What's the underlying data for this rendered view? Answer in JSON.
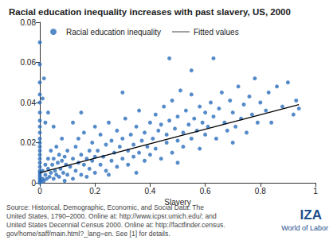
{
  "chart_data": {
    "type": "scatter",
    "title": "Racial education inequality increases with past slavery, US, 2000",
    "xlabel": "Slavery",
    "xlim": [
      0,
      1
    ],
    "xticks": [
      0,
      0.2,
      0.4,
      0.6,
      0.8,
      1
    ],
    "ylim": [
      0,
      0.08
    ],
    "yticks": [
      0,
      0.02,
      0.04,
      0.06,
      0.08
    ],
    "grid": false,
    "legend": "upper left",
    "source": [
      "Source: Historical, Demographic, Economic, and Social Data: The",
      "United States, 1790–2000. Online at: http://www.icpsr.umich.edu/; and",
      "United States Decennial Census 2000. Online at: http://factfinder.census.",
      "gov/home/saff/main.html?_lang=en. See [1] for details."
    ],
    "logo": [
      "IZA",
      "World of Labor"
    ],
    "series": [
      {
        "name": "Racial education inequality",
        "type": "scatter",
        "marker": "circle",
        "color": "#2a6ebb",
        "x": [
          0,
          0,
          0,
          0,
          0,
          0,
          0,
          0,
          0,
          0,
          0,
          0,
          0,
          0,
          0,
          0,
          0,
          0,
          0,
          0,
          0,
          0,
          0,
          0,
          0.005,
          0.01,
          0.01,
          0.015,
          0.02,
          0.02,
          0.025,
          0.03,
          0.03,
          0.035,
          0.04,
          0.04,
          0.045,
          0.05,
          0.05,
          0.055,
          0.06,
          0.06,
          0.065,
          0.07,
          0.07,
          0.075,
          0.08,
          0.08,
          0.085,
          0.09,
          0.09,
          0.095,
          0.1,
          0.1,
          0.02,
          0.01,
          0.05,
          0.03,
          0.015,
          0.11,
          0.12,
          0.12,
          0.13,
          0.13,
          0.14,
          0.14,
          0.15,
          0.15,
          0.16,
          0.16,
          0.17,
          0.17,
          0.18,
          0.18,
          0.19,
          0.19,
          0.2,
          0.2,
          0.2,
          0.12,
          0.15,
          0.21,
          0.22,
          0.22,
          0.23,
          0.24,
          0.24,
          0.25,
          0.26,
          0.26,
          0.27,
          0.28,
          0.28,
          0.29,
          0.3,
          0.3,
          0.31,
          0.32,
          0.32,
          0.33,
          0.34,
          0.34,
          0.35,
          0.36,
          0.36,
          0.37,
          0.38,
          0.38,
          0.39,
          0.4,
          0.4,
          0.3,
          0.35,
          0.25,
          0.41,
          0.42,
          0.42,
          0.43,
          0.44,
          0.44,
          0.45,
          0.46,
          0.46,
          0.47,
          0.48,
          0.48,
          0.49,
          0.5,
          0.5,
          0.51,
          0.52,
          0.52,
          0.53,
          0.54,
          0.55,
          0.55,
          0.56,
          0.57,
          0.58,
          0.58,
          0.59,
          0.6,
          0.6,
          0.47,
          0.55,
          0.5,
          0.61,
          0.62,
          0.63,
          0.64,
          0.65,
          0.66,
          0.67,
          0.68,
          0.69,
          0.7,
          0.71,
          0.72,
          0.73,
          0.74,
          0.75,
          0.76,
          0.77,
          0.78,
          0.79,
          0.8,
          0.63,
          0.7,
          0.82,
          0.83,
          0.84,
          0.86,
          0.88,
          0.9,
          0.92,
          0.93,
          0.94
        ],
        "values": [
          0,
          0.001,
          0.002,
          0.003,
          0.004,
          0.005,
          0.006,
          0.008,
          0.01,
          0.012,
          0.014,
          0.016,
          0.018,
          0.02,
          0.022,
          0.025,
          0.028,
          0.031,
          0.035,
          0.04,
          0.044,
          0.05,
          0.059,
          0.07,
          0.0005,
          0.002,
          0.006,
          0.001,
          0.004,
          0.009,
          0.002,
          0.007,
          0.012,
          0.003,
          0.005,
          0.016,
          0.009,
          0.002,
          0.012,
          0.006,
          0.004,
          0.018,
          0.01,
          0.003,
          0.014,
          0.007,
          0.011,
          0.022,
          0.005,
          0.013,
          0.001,
          0.009,
          0.016,
          0.004,
          0.03,
          0.042,
          0.028,
          0.035,
          0.052,
          0.008,
          0.012,
          0.002,
          0.018,
          0.006,
          0.01,
          0.022,
          0.004,
          0.014,
          0.009,
          0.025,
          0.012,
          0.003,
          0.016,
          0.007,
          0.02,
          0.011,
          0.013,
          0.005,
          0.028,
          0.03,
          0.035,
          0.016,
          0.009,
          0.024,
          0.013,
          0.006,
          0.019,
          0.03,
          0.011,
          0.021,
          0.015,
          0.008,
          0.026,
          0.018,
          0.012,
          0.022,
          0.032,
          0.016,
          0.009,
          0.024,
          0.019,
          0.013,
          0.028,
          0.015,
          0.036,
          0.021,
          0.011,
          0.025,
          0.018,
          0.03,
          0.014,
          0.045,
          0.005,
          0.004,
          0.022,
          0.017,
          0.034,
          0.026,
          0.012,
          0.029,
          0.038,
          0.02,
          0.024,
          0.031,
          0.015,
          0.041,
          0.027,
          0.021,
          0.033,
          0.046,
          0.025,
          0.018,
          0.036,
          0.029,
          0.022,
          0.044,
          0.032,
          0.026,
          0.038,
          0.017,
          0.03,
          0.035,
          0.024,
          0.062,
          0.056,
          0.01,
          0.028,
          0.04,
          0.033,
          0.022,
          0.037,
          0.045,
          0.03,
          0.026,
          0.041,
          0.035,
          0.028,
          0.048,
          0.032,
          0.039,
          0.025,
          0.043,
          0.034,
          0.052,
          0.03,
          0.04,
          0.062,
          0.02,
          0.036,
          0.045,
          0.03,
          0.048,
          0.038,
          0.05,
          0.034,
          0.041,
          0.037
        ]
      },
      {
        "name": "Fitted values",
        "type": "line",
        "line_style": "solid",
        "color": "#000000",
        "x": [
          0,
          0.94
        ],
        "values": [
          0.005,
          0.039
        ]
      }
    ]
  }
}
